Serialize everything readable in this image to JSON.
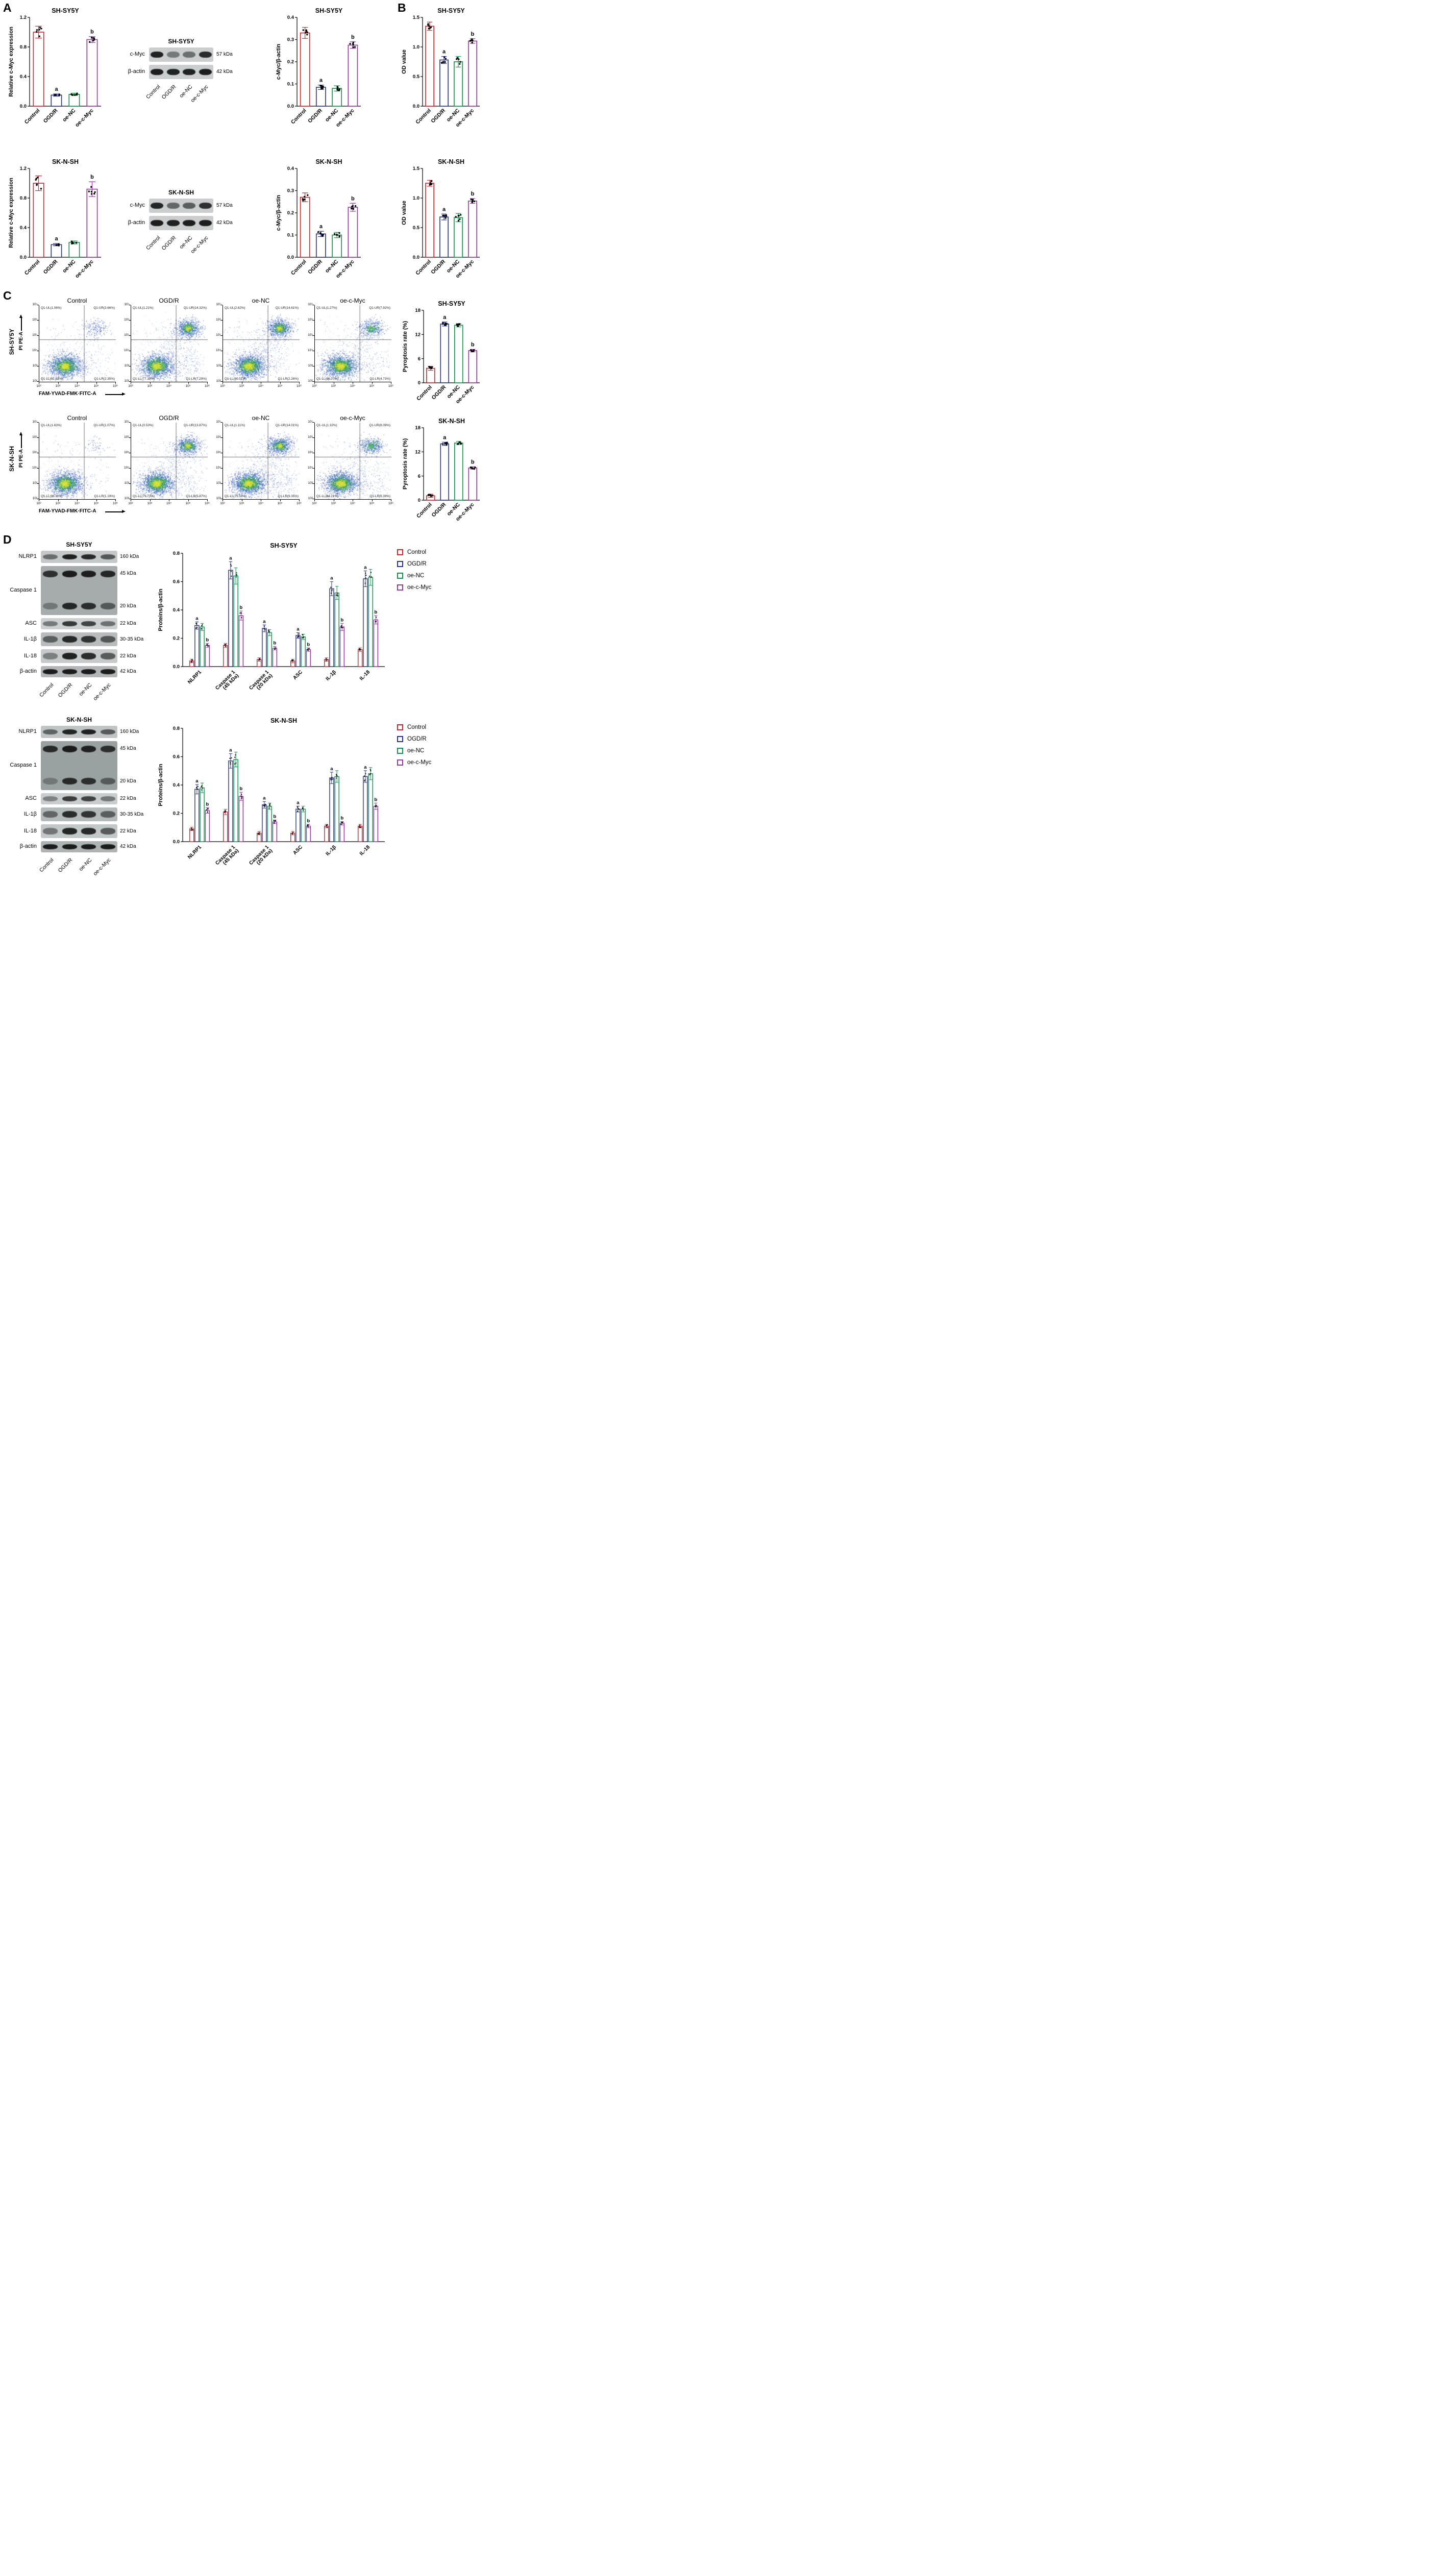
{
  "figure": {
    "panel_labels": {
      "A": "A",
      "B": "B",
      "C": "C",
      "D": "D"
    }
  },
  "groups": [
    "Control",
    "OGD/R",
    "oe-NC",
    "oe-c-Myc"
  ],
  "group_colors": [
    "#d2232a",
    "#27348b",
    "#0f9447",
    "#94399e"
  ],
  "western_blots": {
    "panel_a": [
      {
        "title": "SH-SY5Y",
        "lanes": [
          "Control",
          "OGD/R",
          "oe-NC",
          "oe-c-Myc"
        ],
        "rows": [
          {
            "label": "c-Myc",
            "bg": "#cacece",
            "h": 28,
            "bands_rows": [
              {
                "kda": "57 kDa",
                "frac": 0.5,
                "bands": [
                  0.92,
                  0.45,
                  0.5,
                  0.88
                ]
              }
            ]
          },
          {
            "label": "β-actin",
            "bg": "#cacece",
            "h": 28,
            "bands_rows": [
              {
                "kda": "42 kDa",
                "frac": 0.5,
                "bands": [
                  0.95,
                  0.93,
                  0.93,
                  0.95
                ]
              }
            ]
          }
        ]
      },
      {
        "title": "SK-N-SH",
        "lanes": [
          "Control",
          "OGD/R",
          "oe-NC",
          "oe-c-Myc"
        ],
        "rows": [
          {
            "label": "c-Myc",
            "bg": "#cacece",
            "h": 28,
            "bands_rows": [
              {
                "kda": "57 kDa",
                "frac": 0.5,
                "bands": [
                  0.9,
                  0.55,
                  0.6,
                  0.85
                ]
              }
            ]
          },
          {
            "label": "β-actin",
            "bg": "#cacece",
            "h": 28,
            "bands_rows": [
              {
                "kda": "42 kDa",
                "frac": 0.5,
                "bands": [
                  0.95,
                  0.93,
                  0.94,
                  0.95
                ]
              }
            ]
          }
        ]
      }
    ],
    "panel_d": [
      {
        "title": "SH-SY5Y",
        "lanes": [
          "Control",
          "OGD/R",
          "oe-NC",
          "oe-c-Myc"
        ],
        "rows": [
          {
            "label": "NLRP1",
            "bg": "#c4c8c8",
            "h": 24,
            "bands_rows": [
              {
                "kda": "160 kDa",
                "frac": 0.5,
                "bands": [
                  0.5,
                  0.93,
                  0.88,
                  0.62
                ]
              }
            ]
          },
          {
            "label": "Caspase 1",
            "bg": "#a6acac",
            "h": 96,
            "bands_rows": [
              {
                "kda": "45 kDa",
                "frac": 0.16,
                "bands": [
                  0.82,
                  0.95,
                  0.93,
                  0.88
                ]
              },
              {
                "kda": "20 kDa",
                "frac": 0.82,
                "bands": [
                  0.35,
                  0.88,
                  0.84,
                  0.55
                ]
              }
            ]
          },
          {
            "label": "ASC",
            "bg": "#ccd0d0",
            "h": 22,
            "bands_rows": [
              {
                "kda": "22 kDa",
                "frac": 0.5,
                "bands": [
                  0.45,
                  0.8,
                  0.75,
                  0.5
                ]
              }
            ]
          },
          {
            "label": "IL-1β",
            "bg": "#b8bcbc",
            "h": 27,
            "bands_rows": [
              {
                "kda": "30-35 kDa",
                "frac": 0.5,
                "bands": [
                  0.55,
                  0.88,
                  0.82,
                  0.6
                ]
              }
            ]
          },
          {
            "label": "IL-18",
            "bg": "#c6caca",
            "h": 27,
            "bands_rows": [
              {
                "kda": "22 kDa",
                "frac": 0.5,
                "bands": [
                  0.4,
                  0.92,
                  0.86,
                  0.6
                ]
              }
            ]
          },
          {
            "label": "β-actin",
            "bg": "#b2b6b6",
            "h": 22,
            "bands_rows": [
              {
                "kda": "42 kDa",
                "frac": 0.5,
                "bands": [
                  0.95,
                  0.95,
                  0.95,
                  0.95
                ]
              }
            ]
          }
        ]
      },
      {
        "title": "SK-N-SH",
        "lanes": [
          "Control",
          "OGD/R",
          "oe-NC",
          "oe-c-Myc"
        ],
        "rows": [
          {
            "label": "NLRP1",
            "bg": "#bfc4c4",
            "h": 24,
            "bands_rows": [
              {
                "kda": "160 kDa",
                "frac": 0.5,
                "bands": [
                  0.55,
                  0.9,
                  0.92,
                  0.6
                ]
              }
            ]
          },
          {
            "label": "Caspase 1",
            "bg": "#9aa1a1",
            "h": 96,
            "bands_rows": [
              {
                "kda": "45 kDa",
                "frac": 0.16,
                "bands": [
                  0.85,
                  0.95,
                  0.9,
                  0.82
                ]
              },
              {
                "kda": "20 kDa",
                "frac": 0.82,
                "bands": [
                  0.3,
                  0.85,
                  0.82,
                  0.5
                ]
              }
            ]
          },
          {
            "label": "ASC",
            "bg": "#c9cdcd",
            "h": 22,
            "bands_rows": [
              {
                "kda": "22 kDa",
                "frac": 0.5,
                "bands": [
                  0.4,
                  0.78,
                  0.74,
                  0.45
                ]
              }
            ]
          },
          {
            "label": "IL-1β",
            "bg": "#b4b9b9",
            "h": 27,
            "bands_rows": [
              {
                "kda": "30-35 kDa",
                "frac": 0.5,
                "bands": [
                  0.5,
                  0.85,
                  0.8,
                  0.55
                ]
              }
            ]
          },
          {
            "label": "IL-18",
            "bg": "#c2c7c7",
            "h": 27,
            "bands_rows": [
              {
                "kda": "22 kDa",
                "frac": 0.5,
                "bands": [
                  0.45,
                  0.9,
                  0.88,
                  0.6
                ]
              }
            ]
          },
          {
            "label": "β-actin",
            "bg": "#aeb3b3",
            "h": 22,
            "bands_rows": [
              {
                "kda": "42 kDa",
                "frac": 0.5,
                "bands": [
                  0.95,
                  0.95,
                  0.95,
                  0.95
                ]
              }
            ]
          }
        ]
      }
    ]
  },
  "flow": {
    "xlabel": "FAM-YVAD-FMK·FITC-A",
    "ylabel": "PI PE-A",
    "x_ticks": [
      "10²",
      "10³",
      "10⁴",
      "10⁵",
      "10⁶"
    ],
    "y_ticks": [
      "10²",
      "10³",
      "10⁴",
      "10⁵",
      "10⁶",
      "10⁷"
    ],
    "rows": [
      {
        "cell_line": "SH-SY5Y",
        "plots": [
          {
            "title": "Control",
            "q_ul": "Q1-UL(1.06%)",
            "q_ur": "Q1-UR(3.66%)",
            "q_ll": "Q1-LL(92.93%)",
            "q_lr": "Q1-LR(2.35%)"
          },
          {
            "title": "OGD/R",
            "q_ul": "Q1-UL(1.21%)",
            "q_ur": "Q1-UR(14.32%)",
            "q_ll": "Q1-LL(77.18%)",
            "q_lr": "Q1-LR(7.29%)"
          },
          {
            "title": "oe-NC",
            "q_ul": "Q1-UL(2.62%)",
            "q_ur": "Q1-UR(14.61%)",
            "q_ll": "Q1-LL(80.51%)",
            "q_lr": "Q1-LR(2.26%)"
          },
          {
            "title": "oe-c-Myc",
            "q_ul": "Q1-UL(1.27%)",
            "q_ur": "Q1-UR(7.92%)",
            "q_ll": "Q1-LL(86.07%)",
            "q_lr": "Q1-LR(4.73%)"
          }
        ]
      },
      {
        "cell_line": "SK-N-SH",
        "plots": [
          {
            "title": "Control",
            "q_ul": "Q1-UL(1.63%)",
            "q_ur": "Q1-UR(1.07%)",
            "q_ll": "Q1-LL(96.11%)",
            "q_lr": "Q1-LR(1.19%)"
          },
          {
            "title": "OGD/R",
            "q_ul": "Q1-UL(0.53%)",
            "q_ur": "Q1-UR(13.87%)",
            "q_ll": "Q1-LL(79.73%)",
            "q_lr": "Q1-LR(5.87%)"
          },
          {
            "title": "oe-NC",
            "q_ul": "Q1-UL(1.11%)",
            "q_ur": "Q1-UR(14.01%)",
            "q_ll": "Q1-LL(75.53%)",
            "q_lr": "Q1-LR(9.35%)"
          },
          {
            "title": "oe-c-Myc",
            "q_ul": "Q1-UL(1.32%)",
            "q_ur": "Q1-UR(8.09%)",
            "q_ll": "Q1-LL(84.21%)",
            "q_lr": "Q1-LR(6.39%)"
          }
        ]
      }
    ]
  },
  "chart_data": [
    {
      "id": "a1",
      "type": "bar",
      "title": "SH-SY5Y",
      "ylabel": "Relative c-Myc expression",
      "ylim": [
        0,
        1.2
      ],
      "yticks": [
        0,
        0.4,
        0.8,
        1.2
      ],
      "ydecimals": 1,
      "categories": [
        "Control",
        "OGD/R",
        "oe-NC",
        "oe-c-Myc"
      ],
      "values": [
        1.0,
        0.15,
        0.16,
        0.9
      ],
      "errors": [
        0.08,
        0.015,
        0.015,
        0.04
      ],
      "letters": [
        "",
        "a",
        "",
        "b"
      ]
    },
    {
      "id": "a2",
      "type": "bar",
      "title": "SH-SY5Y",
      "ylabel": "c-Myc/β-actin",
      "ylim": [
        0,
        0.4
      ],
      "yticks": [
        0,
        0.1,
        0.2,
        0.3,
        0.4
      ],
      "ydecimals": 1,
      "categories": [
        "Control",
        "OGD/R",
        "oe-NC",
        "oe-c-Myc"
      ],
      "values": [
        0.33,
        0.085,
        0.08,
        0.275
      ],
      "errors": [
        0.025,
        0.01,
        0.012,
        0.015
      ],
      "letters": [
        "",
        "a",
        "",
        "b"
      ]
    },
    {
      "id": "b1",
      "type": "bar",
      "title": "SH-SY5Y",
      "ylabel": "OD value",
      "ylim": [
        0,
        1.5
      ],
      "yticks": [
        0,
        0.5,
        1.0,
        1.5
      ],
      "ydecimals": 1,
      "categories": [
        "Control",
        "OGD/R",
        "oe-NC",
        "oe-c-Myc"
      ],
      "values": [
        1.35,
        0.78,
        0.75,
        1.1
      ],
      "errors": [
        0.07,
        0.06,
        0.09,
        0.04
      ],
      "letters": [
        "",
        "a",
        "",
        "b"
      ]
    },
    {
      "id": "a3",
      "type": "bar",
      "title": "SK-N-SH",
      "ylabel": "Relative c-Myc expression",
      "ylim": [
        0,
        1.2
      ],
      "yticks": [
        0,
        0.4,
        0.8,
        1.2
      ],
      "ydecimals": 1,
      "categories": [
        "Control",
        "OGD/R",
        "oe-NC",
        "oe-c-Myc"
      ],
      "values": [
        1.0,
        0.17,
        0.2,
        0.92
      ],
      "errors": [
        0.1,
        0.015,
        0.02,
        0.1
      ],
      "letters": [
        "",
        "a",
        "",
        "b"
      ]
    },
    {
      "id": "a4",
      "type": "bar",
      "title": "SK-N-SH",
      "ylabel": "c-Myc/β-actin",
      "ylim": [
        0,
        0.4
      ],
      "yticks": [
        0,
        0.1,
        0.2,
        0.3,
        0.4
      ],
      "ydecimals": 1,
      "categories": [
        "Control",
        "OGD/R",
        "oe-NC",
        "oe-c-Myc"
      ],
      "values": [
        0.27,
        0.105,
        0.1,
        0.225
      ],
      "errors": [
        0.02,
        0.012,
        0.012,
        0.018
      ],
      "letters": [
        "",
        "a",
        "",
        "b"
      ]
    },
    {
      "id": "b2",
      "type": "bar",
      "title": "SK-N-SH",
      "ylabel": "OD value",
      "ylim": [
        0,
        1.5
      ],
      "yticks": [
        0,
        0.5,
        1.0,
        1.5
      ],
      "ydecimals": 1,
      "categories": [
        "Control",
        "OGD/R",
        "oe-NC",
        "oe-c-Myc"
      ],
      "values": [
        1.25,
        0.68,
        0.67,
        0.95
      ],
      "errors": [
        0.05,
        0.05,
        0.07,
        0.04
      ],
      "letters": [
        "",
        "a",
        "",
        "b"
      ]
    },
    {
      "id": "c1",
      "type": "bar",
      "title": "SH-SY5Y",
      "ylabel": "Pyroptosis rate (%)",
      "ylim": [
        0,
        18
      ],
      "yticks": [
        0,
        6,
        12,
        18
      ],
      "ydecimals": 0,
      "categories": [
        "Control",
        "OGD/R",
        "oe-NC",
        "oe-c-Myc"
      ],
      "values": [
        3.6,
        14.6,
        14.3,
        8.0
      ],
      "errors": [
        0.5,
        0.5,
        0.4,
        0.3
      ],
      "letters": [
        "",
        "a",
        "",
        "b"
      ]
    },
    {
      "id": "c2",
      "type": "bar",
      "title": "SK-N-SH",
      "ylabel": "Pyroptosis rate (%)",
      "ylim": [
        0,
        18
      ],
      "yticks": [
        0,
        6,
        12,
        18
      ],
      "ydecimals": 0,
      "categories": [
        "Control",
        "OGD/R",
        "oe-NC",
        "oe-c-Myc"
      ],
      "values": [
        1.1,
        14.0,
        14.2,
        8.0
      ],
      "errors": [
        0.4,
        0.4,
        0.4,
        0.3
      ],
      "letters": [
        "",
        "a",
        "",
        "b"
      ]
    },
    {
      "id": "d1",
      "type": "grouped-bar",
      "title": "SH-SY5Y",
      "ylabel": "Proteins/β-actin",
      "ylim": [
        0,
        0.8
      ],
      "yticks": [
        0,
        0.2,
        0.4,
        0.6,
        0.8
      ],
      "ydecimals": 1,
      "categories": [
        "NLRP1",
        "Caspase 1\n(45 kDa)",
        "Caspase 1\n(20 kDa)",
        "ASC",
        "IL-1β",
        "IL-18"
      ],
      "series": [
        {
          "name": "Control",
          "values": [
            0.04,
            0.15,
            0.05,
            0.04,
            0.05,
            0.12
          ]
        },
        {
          "name": "OGD/R",
          "values": [
            0.29,
            0.68,
            0.27,
            0.22,
            0.55,
            0.62
          ]
        },
        {
          "name": "oe-NC",
          "values": [
            0.28,
            0.64,
            0.24,
            0.21,
            0.52,
            0.63
          ]
        },
        {
          "name": "oe-c-Myc",
          "values": [
            0.15,
            0.36,
            0.13,
            0.12,
            0.28,
            0.33
          ]
        }
      ],
      "letter_map": {
        "1": "a",
        "3": "b"
      }
    },
    {
      "id": "d2",
      "type": "grouped-bar",
      "title": "SK-N-SH",
      "ylabel": "Proteins/β-actin",
      "ylim": [
        0,
        0.8
      ],
      "yticks": [
        0,
        0.2,
        0.4,
        0.6,
        0.8
      ],
      "ydecimals": 1,
      "categories": [
        "NLRP1",
        "Caspase 1\n(45 kDa)",
        "Caspase 1\n(20 kDa)",
        "ASC",
        "IL-1β",
        "IL-18"
      ],
      "series": [
        {
          "name": "Control",
          "values": [
            0.09,
            0.21,
            0.06,
            0.06,
            0.11,
            0.11
          ]
        },
        {
          "name": "OGD/R",
          "values": [
            0.37,
            0.57,
            0.26,
            0.23,
            0.45,
            0.46
          ]
        },
        {
          "name": "oe-NC",
          "values": [
            0.38,
            0.58,
            0.25,
            0.23,
            0.46,
            0.48
          ]
        },
        {
          "name": "oe-c-Myc",
          "values": [
            0.22,
            0.32,
            0.14,
            0.11,
            0.13,
            0.25
          ]
        }
      ],
      "letter_map": {
        "1": "a",
        "3": "b"
      }
    }
  ]
}
